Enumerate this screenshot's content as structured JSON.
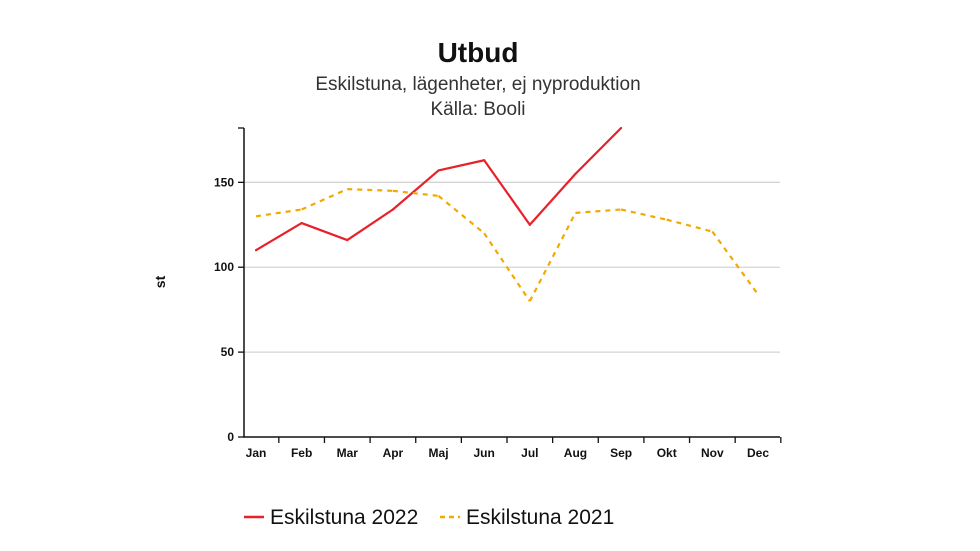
{
  "chart_data": {
    "type": "line",
    "title": "Utbud",
    "subtitle": [
      "Eskilstuna, lägenheter, ej nyproduktion",
      "Källa: Booli"
    ],
    "xlabel": "",
    "ylabel": "st",
    "categories": [
      "Jan",
      "Feb",
      "Mar",
      "Apr",
      "Maj",
      "Jun",
      "Jul",
      "Aug",
      "Sep",
      "Okt",
      "Nov",
      "Dec"
    ],
    "yticks": [
      0,
      50,
      100,
      150
    ],
    "ylim": [
      0,
      182
    ],
    "grid": true,
    "legend_position": "bottom",
    "series": [
      {
        "name": "Eskilstuna 2022",
        "color": "#e8202a",
        "style": "solid",
        "values": [
          110,
          126,
          116,
          134,
          157,
          163,
          125,
          155,
          182,
          null,
          null,
          null
        ]
      },
      {
        "name": "Eskilstuna 2021",
        "color": "#f2a900",
        "style": "dashed",
        "values": [
          130,
          134,
          146,
          145,
          142,
          120,
          80,
          132,
          134,
          128,
          121,
          84
        ]
      }
    ]
  }
}
